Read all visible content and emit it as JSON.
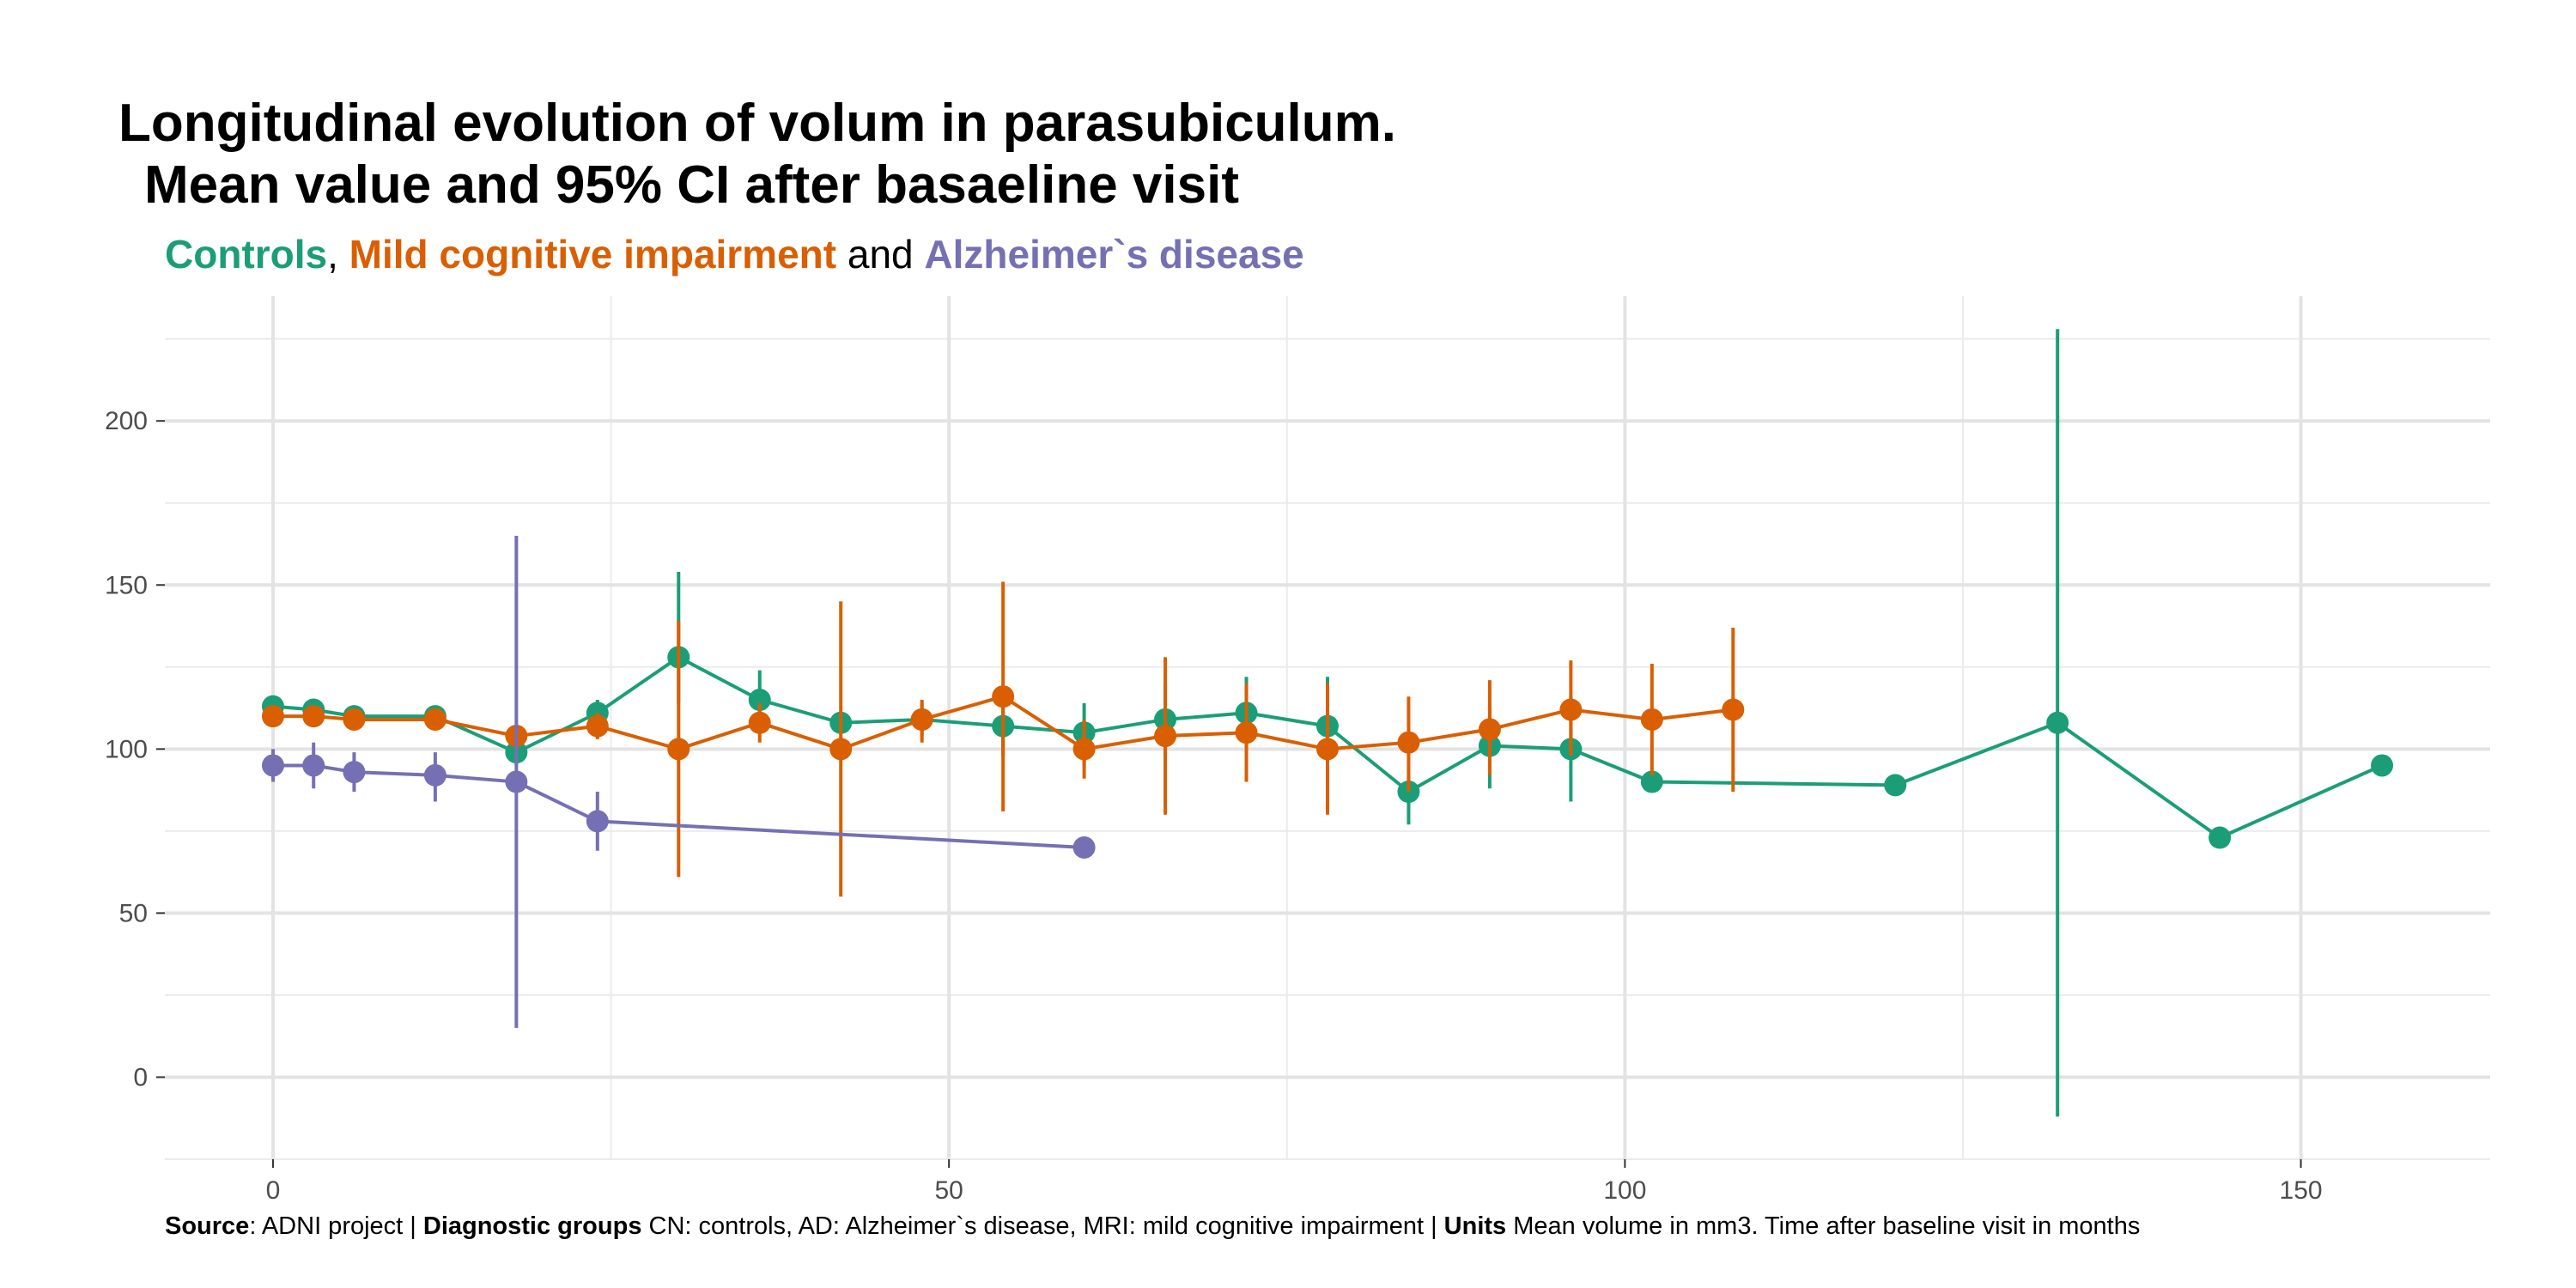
{
  "chart_data": {
    "type": "line",
    "title_line1": "Longitudinal evolution of volum in parasubiculum.",
    "title_line2": "Mean value and 95% CI after basaeline visit",
    "subtitle": {
      "controls": "Controls",
      "sep1": ", ",
      "mci": "Mild cognitive impairment",
      "sep2": " and ",
      "ad": "Alzheimer`s disease"
    },
    "caption": {
      "source_label": "Source",
      "source_text": ": ADNI project | ",
      "groups_label": "Diagnostic groups",
      "groups_text": " CN: controls, AD: Alzheimer`s disease, MRI: mild cognitive impairment | ",
      "units_label": "Units",
      "units_text": " Mean volume in mm3. Time after baseline visit in months"
    },
    "xlim": [
      -8,
      164
    ],
    "ylim": [
      -25,
      238
    ],
    "x_ticks": [
      0,
      50,
      100,
      150
    ],
    "y_ticks": [
      0,
      50,
      100,
      150,
      200
    ],
    "grid": true,
    "colors": {
      "controls": "#1b9e77",
      "mci": "#d95f02",
      "ad": "#7570b3"
    },
    "series": [
      {
        "key": "controls",
        "x": [
          0,
          3,
          6,
          12,
          18,
          24,
          30,
          36,
          42,
          48,
          54,
          60,
          66,
          72,
          78,
          84,
          90,
          96,
          102,
          120,
          132,
          144,
          156
        ],
        "y": [
          113,
          112,
          110,
          110,
          99,
          111,
          128,
          115,
          108,
          109,
          107,
          105,
          109,
          111,
          107,
          87,
          101,
          100,
          90,
          89,
          108,
          73,
          95
        ],
        "low": [
          110,
          109,
          107,
          107,
          95,
          106,
          114,
          107,
          106,
          104,
          98,
          95,
          98,
          100,
          93,
          77,
          88,
          84,
          88,
          88,
          -12,
          72,
          94
        ],
        "high": [
          116,
          115,
          113,
          113,
          103,
          115,
          154,
          124,
          110,
          114,
          116,
          114,
          120,
          122,
          122,
          95,
          114,
          116,
          91,
          90,
          228,
          74,
          96
        ]
      },
      {
        "key": "mci",
        "x": [
          0,
          3,
          6,
          12,
          18,
          24,
          30,
          36,
          42,
          48,
          54,
          60,
          66,
          72,
          78,
          84,
          90,
          96,
          102,
          108
        ],
        "y": [
          110,
          110,
          109,
          109,
          104,
          107,
          100,
          108,
          100,
          109,
          116,
          100,
          104,
          105,
          100,
          102,
          106,
          112,
          109,
          112
        ],
        "low": [
          108,
          108,
          107,
          107,
          101,
          103,
          61,
          102,
          55,
          102,
          81,
          91,
          80,
          90,
          80,
          87,
          92,
          98,
          92,
          87
        ],
        "high": [
          112,
          112,
          111,
          111,
          107,
          111,
          139,
          114,
          145,
          115,
          151,
          109,
          128,
          120,
          120,
          116,
          121,
          127,
          126,
          137
        ]
      },
      {
        "key": "ad",
        "x": [
          0,
          3,
          6,
          12,
          18,
          24,
          60
        ],
        "y": [
          95,
          95,
          93,
          92,
          90,
          78,
          70
        ],
        "low": [
          90,
          88,
          87,
          84,
          15,
          69,
          69
        ],
        "high": [
          100,
          102,
          99,
          99,
          165,
          87,
          71
        ]
      }
    ]
  }
}
